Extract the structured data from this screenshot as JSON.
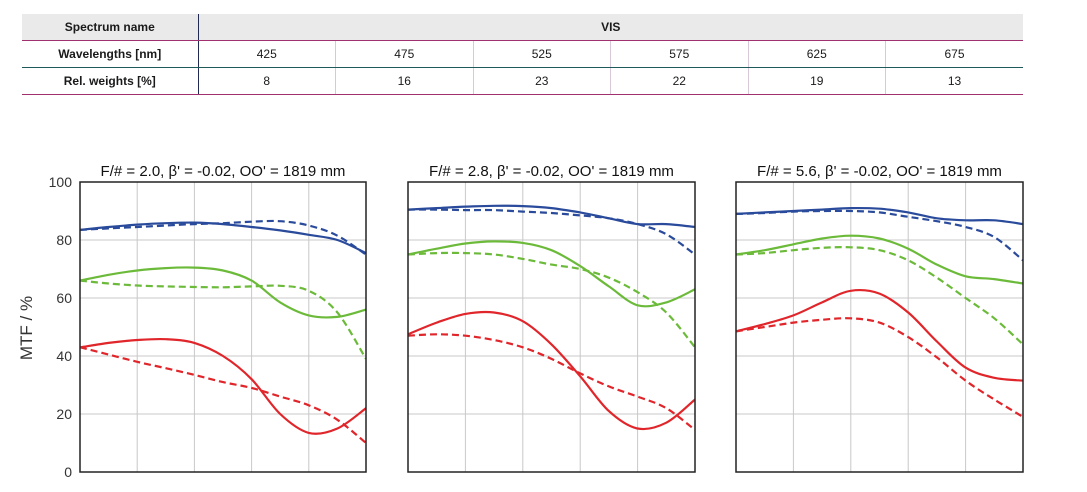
{
  "table": {
    "spectrum_label": "Spectrum name",
    "spectrum_value": "VIS",
    "wavelengths_label": "Wavelengths [nm]",
    "wavelengths": [
      "425",
      "475",
      "525",
      "575",
      "625",
      "675"
    ],
    "weights_label": "Rel. weights [%]",
    "weights": [
      "8",
      "16",
      "23",
      "22",
      "19",
      "13"
    ]
  },
  "colors": {
    "blue": "#2a4b9b",
    "green": "#6cba3a",
    "red": "#e0262b",
    "grid": "#c8c8c8",
    "frame": "#222222"
  },
  "chart_data": [
    {
      "type": "line",
      "title": "F/# = 2.0, β' = -0.02, OO' = 1819 mm",
      "ylabel": "MTF / %",
      "ylim": [
        0,
        100
      ],
      "xlim": [
        0,
        1
      ],
      "yticks": [
        "0",
        "20",
        "40",
        "60",
        "80",
        "100"
      ],
      "grid": true,
      "series": [
        {
          "color": "blue",
          "dash": false,
          "x": [
            0,
            0.1,
            0.2,
            0.3,
            0.4,
            0.5,
            0.6,
            0.7,
            0.8,
            0.9,
            1
          ],
          "y": [
            83.5,
            84.5,
            85.3,
            85.8,
            86,
            85.5,
            84.5,
            83.3,
            81.8,
            80,
            75.5
          ]
        },
        {
          "color": "blue",
          "dash": true,
          "x": [
            0,
            0.1,
            0.2,
            0.3,
            0.4,
            0.5,
            0.6,
            0.7,
            0.8,
            0.9,
            1
          ],
          "y": [
            83.5,
            84,
            84.5,
            85,
            85.5,
            85.8,
            86.3,
            86.5,
            85,
            81.5,
            75
          ]
        },
        {
          "color": "green",
          "dash": false,
          "x": [
            0,
            0.1,
            0.2,
            0.3,
            0.4,
            0.5,
            0.6,
            0.7,
            0.8,
            0.9,
            1
          ],
          "y": [
            66,
            68,
            69.5,
            70.3,
            70.5,
            69.5,
            66,
            58.5,
            54,
            53.5,
            56
          ]
        },
        {
          "color": "green",
          "dash": true,
          "x": [
            0,
            0.1,
            0.2,
            0.3,
            0.4,
            0.5,
            0.6,
            0.7,
            0.8,
            0.9,
            1
          ],
          "y": [
            66,
            65,
            64.3,
            64,
            63.8,
            63.7,
            64,
            64.2,
            62.5,
            55,
            39
          ]
        },
        {
          "color": "red",
          "dash": false,
          "x": [
            0,
            0.1,
            0.2,
            0.3,
            0.4,
            0.5,
            0.6,
            0.7,
            0.8,
            0.9,
            1
          ],
          "y": [
            43,
            44.5,
            45.5,
            45.8,
            44.5,
            40,
            32,
            20,
            13.5,
            15,
            22
          ]
        },
        {
          "color": "red",
          "dash": true,
          "x": [
            0,
            0.1,
            0.2,
            0.3,
            0.4,
            0.5,
            0.6,
            0.7,
            0.8,
            0.9,
            1
          ],
          "y": [
            43,
            40.5,
            38,
            35.8,
            33.5,
            31,
            29,
            26,
            23,
            18,
            10
          ]
        }
      ]
    },
    {
      "type": "line",
      "title": "F/# = 2.8, β' = -0.02, OO' = 1819 mm",
      "ylim": [
        0,
        100
      ],
      "xlim": [
        0,
        1
      ],
      "grid": true,
      "series": [
        {
          "color": "blue",
          "dash": false,
          "x": [
            0,
            0.1,
            0.2,
            0.3,
            0.4,
            0.5,
            0.6,
            0.7,
            0.8,
            0.9,
            1
          ],
          "y": [
            90.5,
            91,
            91.5,
            91.8,
            91.7,
            91,
            89.5,
            87.5,
            85.5,
            85.5,
            84.5
          ]
        },
        {
          "color": "blue",
          "dash": true,
          "x": [
            0,
            0.1,
            0.2,
            0.3,
            0.4,
            0.5,
            0.6,
            0.7,
            0.8,
            0.9,
            1
          ],
          "y": [
            90.5,
            90.5,
            90.3,
            90.3,
            89.8,
            89.3,
            88.5,
            87.5,
            85.5,
            82,
            75
          ]
        },
        {
          "color": "green",
          "dash": false,
          "x": [
            0,
            0.1,
            0.2,
            0.3,
            0.4,
            0.5,
            0.6,
            0.7,
            0.8,
            0.9,
            1
          ],
          "y": [
            75,
            77,
            78.8,
            79.5,
            79,
            76.5,
            71,
            64,
            57.5,
            58.5,
            63
          ]
        },
        {
          "color": "green",
          "dash": true,
          "x": [
            0,
            0.1,
            0.2,
            0.3,
            0.4,
            0.5,
            0.6,
            0.7,
            0.8,
            0.9,
            1
          ],
          "y": [
            75,
            75.5,
            75.5,
            75,
            73.5,
            71.5,
            70,
            67,
            62,
            55,
            43
          ]
        },
        {
          "color": "red",
          "dash": false,
          "x": [
            0,
            0.1,
            0.2,
            0.3,
            0.4,
            0.5,
            0.6,
            0.7,
            0.8,
            0.9,
            1
          ],
          "y": [
            47.5,
            51.5,
            54.5,
            55,
            52,
            44,
            33,
            21,
            15,
            17,
            25
          ]
        },
        {
          "color": "red",
          "dash": true,
          "x": [
            0,
            0.1,
            0.2,
            0.3,
            0.4,
            0.5,
            0.6,
            0.7,
            0.8,
            0.9,
            1
          ],
          "y": [
            47,
            47.5,
            47,
            45.5,
            43,
            39,
            34,
            29.5,
            26,
            22,
            14.5
          ]
        }
      ]
    },
    {
      "type": "line",
      "title": "F/# = 5.6, β' = -0.02, OO' = 1819 mm",
      "ylim": [
        0,
        100
      ],
      "xlim": [
        0,
        1
      ],
      "grid": true,
      "series": [
        {
          "color": "blue",
          "dash": false,
          "x": [
            0,
            0.1,
            0.2,
            0.3,
            0.4,
            0.5,
            0.6,
            0.7,
            0.8,
            0.9,
            1
          ],
          "y": [
            89,
            89.5,
            90,
            90.5,
            91,
            90.8,
            89.5,
            87.5,
            86.8,
            86.8,
            85.5
          ]
        },
        {
          "color": "blue",
          "dash": true,
          "x": [
            0,
            0.1,
            0.2,
            0.3,
            0.4,
            0.5,
            0.6,
            0.7,
            0.8,
            0.9,
            1
          ],
          "y": [
            89,
            89.3,
            89.8,
            90,
            90,
            89.5,
            88,
            86.5,
            84.5,
            81,
            73
          ]
        },
        {
          "color": "green",
          "dash": false,
          "x": [
            0,
            0.1,
            0.2,
            0.3,
            0.4,
            0.5,
            0.6,
            0.7,
            0.8,
            0.9,
            1
          ],
          "y": [
            75,
            76.5,
            78.5,
            80.5,
            81.5,
            80.5,
            77,
            71.5,
            67.5,
            66.5,
            65
          ]
        },
        {
          "color": "green",
          "dash": true,
          "x": [
            0,
            0.1,
            0.2,
            0.3,
            0.4,
            0.5,
            0.6,
            0.7,
            0.8,
            0.9,
            1
          ],
          "y": [
            75,
            75.5,
            76.5,
            77.3,
            77.5,
            76.5,
            73,
            67,
            60,
            53,
            44
          ]
        },
        {
          "color": "red",
          "dash": false,
          "x": [
            0,
            0.1,
            0.2,
            0.3,
            0.4,
            0.5,
            0.6,
            0.7,
            0.8,
            0.9,
            1
          ],
          "y": [
            48.5,
            51,
            54,
            58.5,
            62.5,
            61.5,
            55,
            45,
            36,
            32.5,
            31.5
          ]
        },
        {
          "color": "red",
          "dash": true,
          "x": [
            0,
            0.1,
            0.2,
            0.3,
            0.4,
            0.5,
            0.6,
            0.7,
            0.8,
            0.9,
            1
          ],
          "y": [
            48.5,
            50,
            51.5,
            52.5,
            53,
            51.5,
            46.5,
            39.5,
            31.5,
            25,
            19
          ]
        }
      ]
    }
  ]
}
